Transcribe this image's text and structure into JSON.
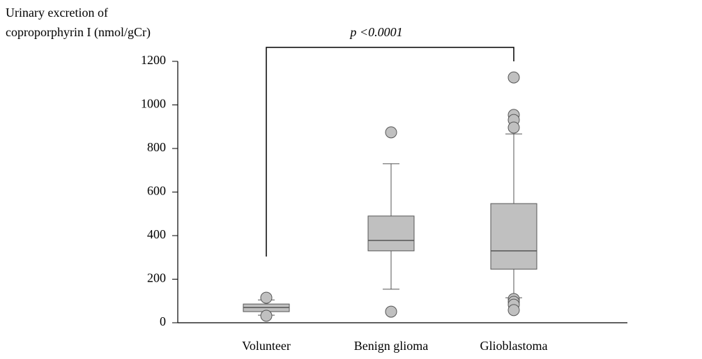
{
  "chart_data": {
    "type": "box",
    "ylabel": [
      "Urinary excretion of",
      "coproporphyrin I (nmol/gCr)"
    ],
    "annotation": "p <0.0001",
    "categories": [
      "Volunteer",
      "Benign glioma",
      "Glioblastoma"
    ],
    "boxes": [
      {
        "whislo": 35,
        "q1": 51,
        "med": 70,
        "q3": 86,
        "whishi": 105,
        "fliers": [
          115,
          32
        ]
      },
      {
        "whislo": 154,
        "q1": 330,
        "med": 378,
        "q3": 490,
        "whishi": 730,
        "fliers": [
          874,
          51
        ]
      },
      {
        "whislo": 115,
        "q1": 246,
        "med": 330,
        "q3": 547,
        "whishi": 867,
        "fliers": [
          1126,
          954,
          931,
          896,
          109,
          96,
          83,
          58
        ]
      }
    ],
    "color": "#c0c0c0",
    "ylim": [
      0,
      1200
    ],
    "yticks": [
      0,
      200,
      400,
      600,
      800,
      1000,
      1200
    ]
  }
}
